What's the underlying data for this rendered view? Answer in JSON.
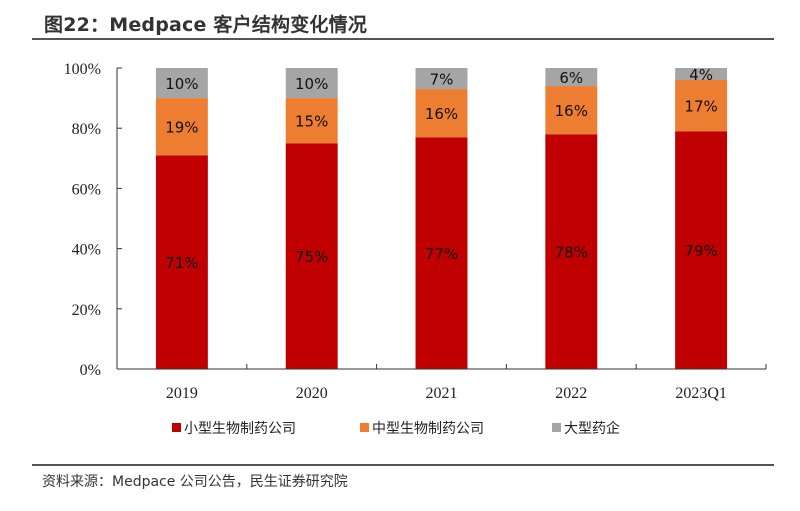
{
  "header": {
    "title": "图22：Medpace 客户结构变化情况"
  },
  "footer": {
    "source": "资料来源：Medpace 公司公告，民生证券研究院"
  },
  "chart_data": {
    "type": "bar",
    "stacked": true,
    "title": "图22：Medpace 客户结构变化情况",
    "xlabel": "",
    "ylabel": "",
    "categories": [
      "2019",
      "2020",
      "2021",
      "2022",
      "2023Q1"
    ],
    "series": [
      {
        "name": "小型生物制药公司",
        "color": "#C00000",
        "values": [
          71,
          75,
          77,
          78,
          79
        ],
        "labels": [
          "71%",
          "75%",
          "77%",
          "78%",
          "79%"
        ]
      },
      {
        "name": "中型生物制药公司",
        "color": "#ED7D31",
        "values": [
          19,
          15,
          16,
          16,
          17
        ],
        "labels": [
          "19%",
          "15%",
          "16%",
          "16%",
          "17%"
        ]
      },
      {
        "name": "大型药企",
        "color": "#A5A5A5",
        "values": [
          10,
          10,
          7,
          6,
          4
        ],
        "labels": [
          "10%",
          "10%",
          "7%",
          "6%",
          "4%"
        ]
      }
    ],
    "ylim": [
      0,
      100
    ],
    "yticks": [
      0,
      20,
      40,
      60,
      80,
      100
    ],
    "ytick_labels": [
      "0%",
      "20%",
      "40%",
      "60%",
      "80%",
      "100%"
    ],
    "grid": false,
    "legend_position": "bottom"
  }
}
